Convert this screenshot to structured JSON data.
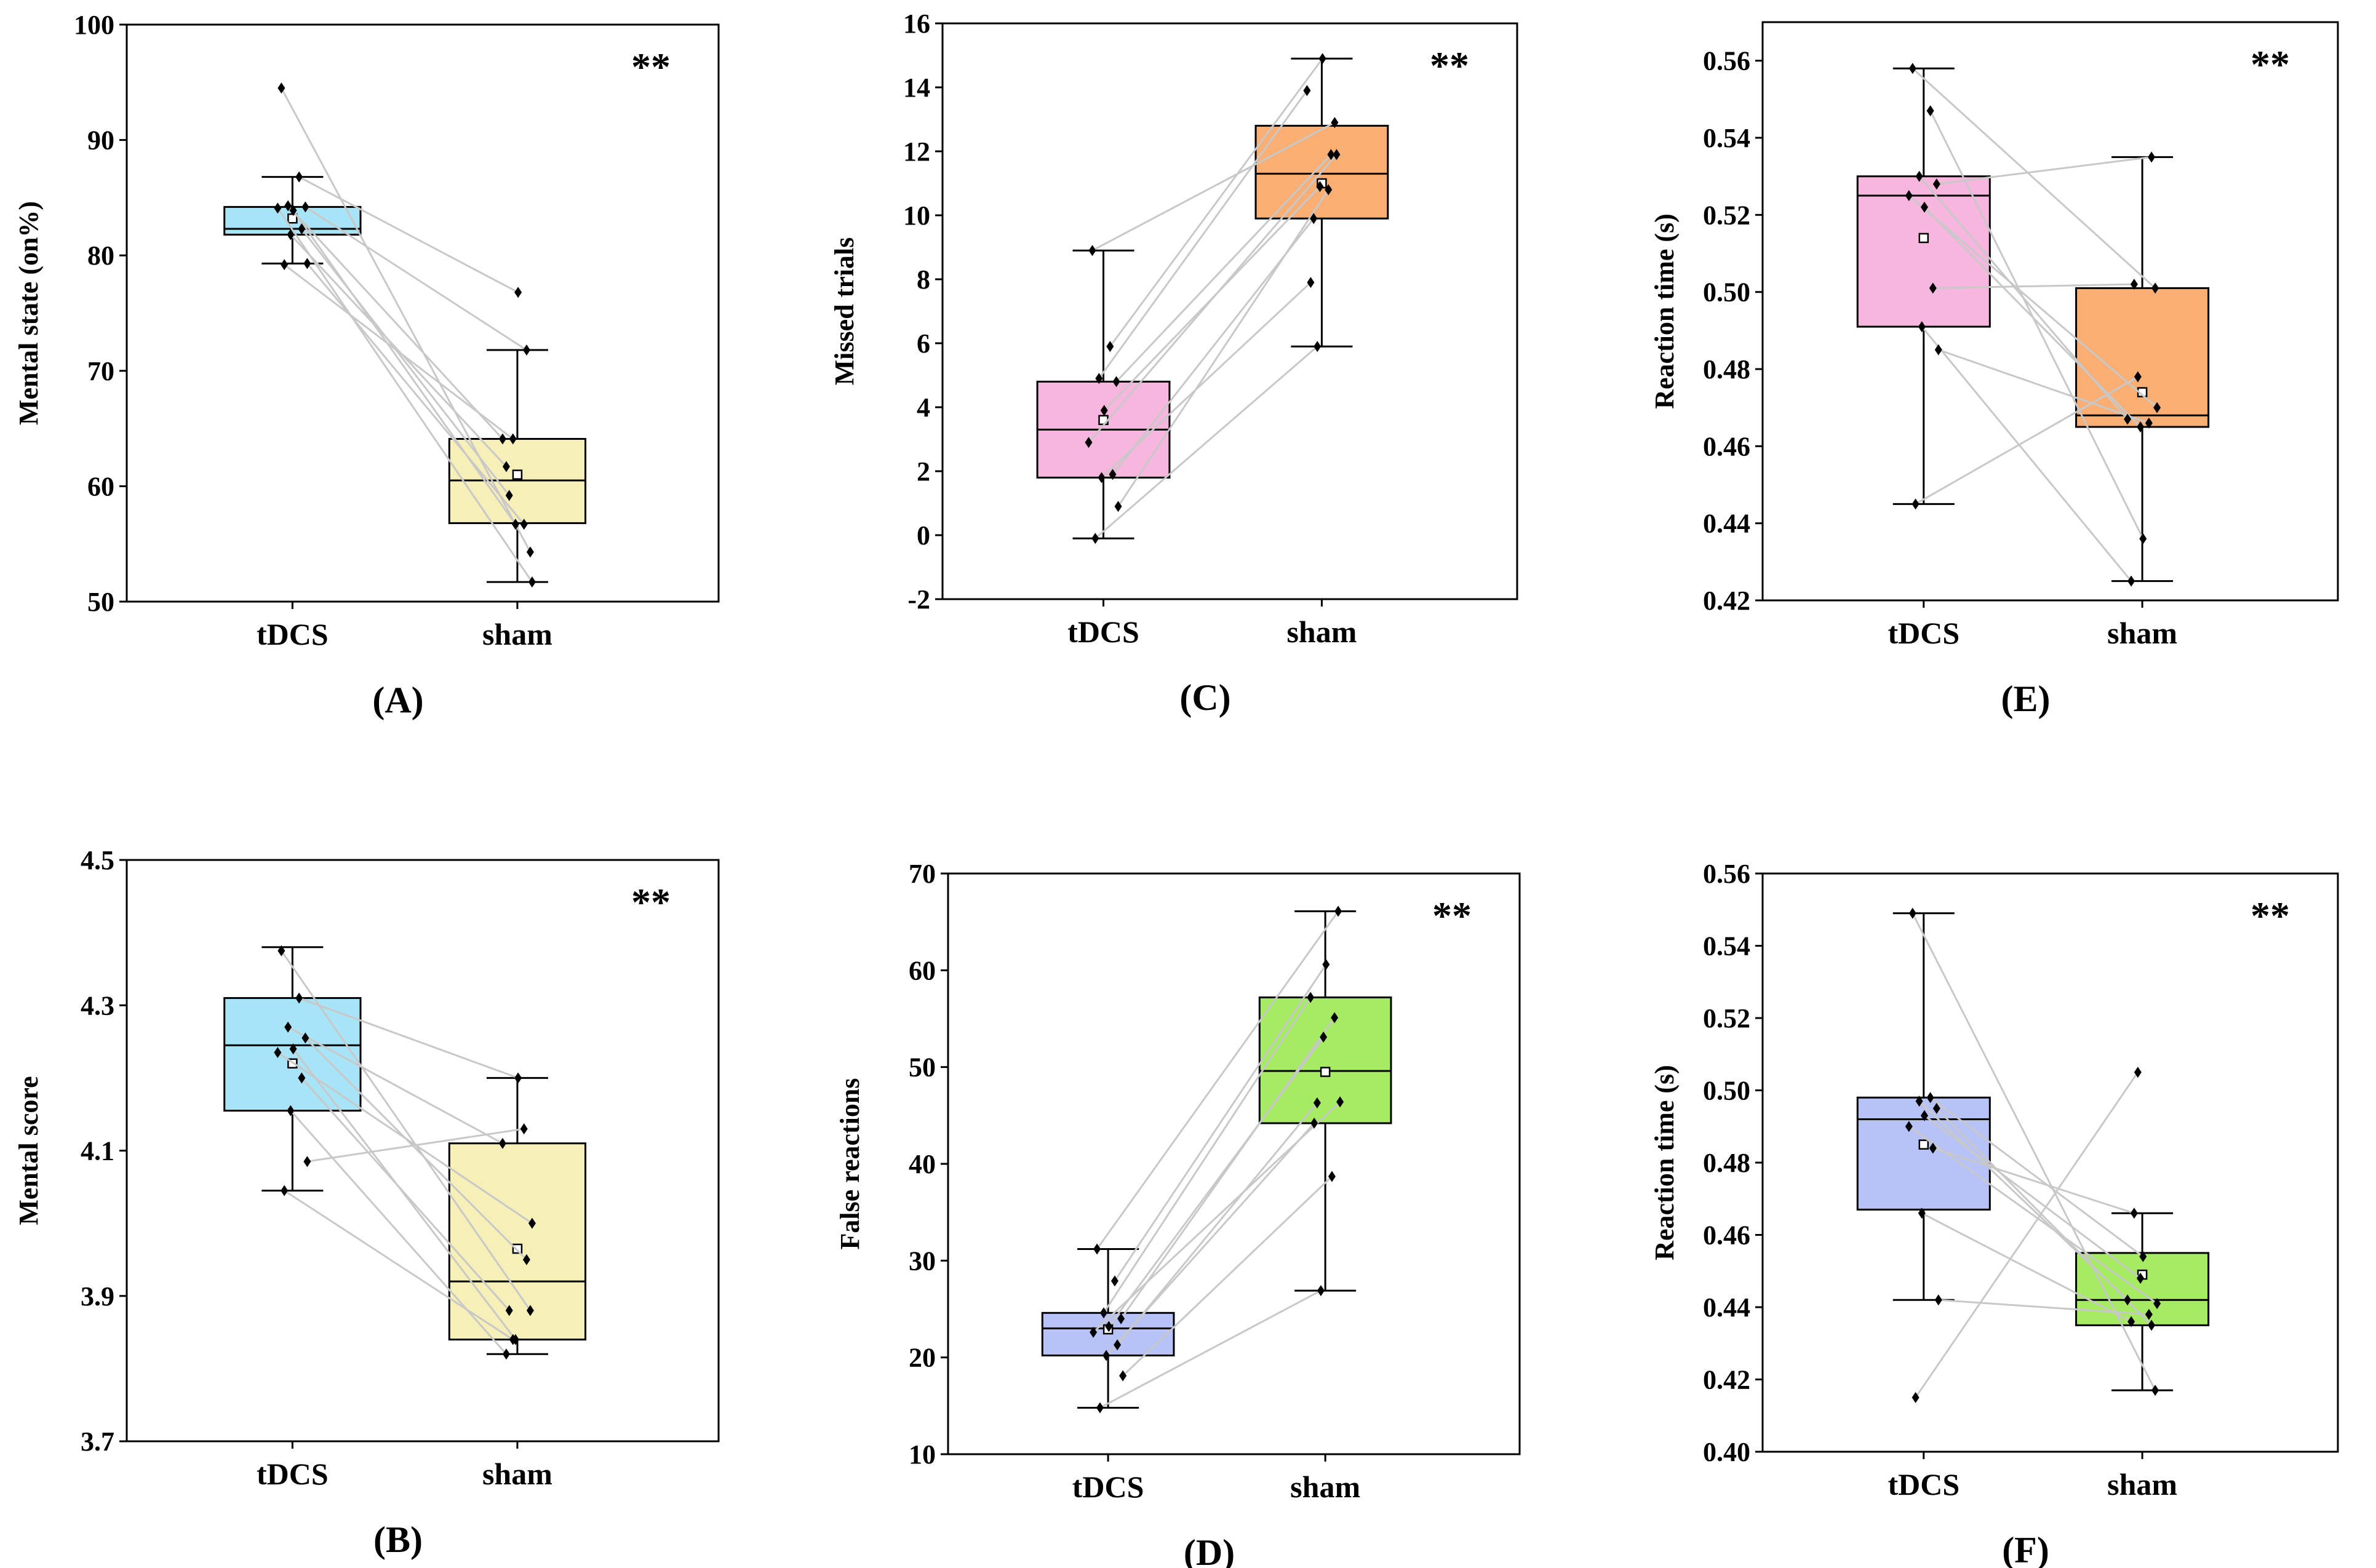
{
  "chart_data": [
    {
      "panel": "(A)",
      "type": "box",
      "ylabel": "Mental state (on%)",
      "ylim": [
        50,
        100
      ],
      "yticks": [
        50,
        60,
        70,
        80,
        90,
        100
      ],
      "categories": [
        "tDCS",
        "sham"
      ],
      "significance": "**",
      "colors": [
        "#a8e4f7",
        "#f6efb8"
      ],
      "boxes": [
        {
          "q1": 81.8,
          "median": 82.3,
          "q3": 84.2,
          "whisker_low": 79.3,
          "whisker_high": 86.8,
          "mean": 83.2
        },
        {
          "q1": 56.8,
          "median": 60.5,
          "q3": 64.1,
          "whisker_low": 51.7,
          "whisker_high": 71.8,
          "mean": 61.0
        }
      ],
      "pairs": [
        [
          94.5,
          54.3
        ],
        [
          86.8,
          76.8
        ],
        [
          84.3,
          64.1
        ],
        [
          84.2,
          71.8
        ],
        [
          83.9,
          56.7
        ],
        [
          84.1,
          51.7
        ],
        [
          82.3,
          59.2
        ],
        [
          81.8,
          61.7
        ],
        [
          79.3,
          56.7
        ],
        [
          79.2,
          64.1
        ]
      ]
    },
    {
      "panel": "(B)",
      "type": "box",
      "ylabel": "Mental score",
      "ylim": [
        3.7,
        4.5
      ],
      "yticks": [
        "3.7",
        "3.9",
        "4.1",
        "4.3",
        "4.5"
      ],
      "categories": [
        "tDCS",
        "sham"
      ],
      "significance": "**",
      "colors": [
        "#a8e4f7",
        "#f6efb8"
      ],
      "boxes": [
        {
          "q1": 4.155,
          "median": 4.245,
          "q3": 4.31,
          "whisker_low": 4.045,
          "whisker_high": 4.38,
          "mean": 4.22
        },
        {
          "q1": 3.84,
          "median": 3.92,
          "q3": 4.11,
          "whisker_low": 3.82,
          "whisker_high": 4.2,
          "mean": 3.965
        }
      ],
      "pairs": [
        [
          4.375,
          3.88
        ],
        [
          4.31,
          4.2
        ],
        [
          4.27,
          4.11
        ],
        [
          4.255,
          3.95
        ],
        [
          4.24,
          3.84
        ],
        [
          4.235,
          4.0
        ],
        [
          4.2,
          3.88
        ],
        [
          4.155,
          3.82
        ],
        [
          4.085,
          4.13
        ],
        [
          4.045,
          3.84
        ]
      ]
    },
    {
      "panel": "(C)",
      "type": "box",
      "ylabel": "Missed trials",
      "ylim": [
        -2,
        16
      ],
      "yticks": [
        -2,
        0,
        2,
        4,
        6,
        8,
        10,
        12,
        14,
        16
      ],
      "categories": [
        "tDCS",
        "sham"
      ],
      "significance": "**",
      "colors": [
        "#f7b6dd",
        "#f9ae74"
      ],
      "boxes": [
        {
          "q1": 1.8,
          "median": 3.3,
          "q3": 4.8,
          "whisker_low": -0.1,
          "whisker_high": 8.9,
          "mean": 3.6
        },
        {
          "q1": 9.9,
          "median": 11.3,
          "q3": 12.8,
          "whisker_low": 5.9,
          "whisker_high": 14.9,
          "mean": 11.0
        }
      ],
      "pairs": [
        [
          8.9,
          12.9
        ],
        [
          5.9,
          14.9
        ],
        [
          4.9,
          13.9
        ],
        [
          4.8,
          11.9
        ],
        [
          3.9,
          10.9
        ],
        [
          2.9,
          11.9
        ],
        [
          1.9,
          9.9
        ],
        [
          1.8,
          7.9
        ],
        [
          0.9,
          10.8
        ],
        [
          -0.1,
          5.9
        ]
      ]
    },
    {
      "panel": "(D)",
      "type": "box",
      "ylabel": "False reactions",
      "ylim": [
        10,
        70
      ],
      "yticks": [
        10,
        20,
        30,
        40,
        50,
        60,
        70
      ],
      "categories": [
        "tDCS",
        "sham"
      ],
      "significance": "**",
      "colors": [
        "#b7c2f7",
        "#a6ec63"
      ],
      "boxes": [
        {
          "q1": 20.2,
          "median": 23.0,
          "q3": 24.6,
          "whisker_low": 14.8,
          "whisker_high": 31.2,
          "mean": 22.9
        },
        {
          "q1": 44.2,
          "median": 49.6,
          "q3": 57.2,
          "whisker_low": 26.9,
          "whisker_high": 66.1,
          "mean": 49.5
        }
      ],
      "pairs": [
        [
          31.2,
          66.1
        ],
        [
          27.9,
          60.6
        ],
        [
          24.6,
          57.2
        ],
        [
          24.0,
          55.1
        ],
        [
          23.2,
          53.1
        ],
        [
          22.6,
          46.4
        ],
        [
          21.3,
          46.3
        ],
        [
          20.2,
          44.2
        ],
        [
          18.1,
          38.7
        ],
        [
          14.8,
          26.9
        ]
      ]
    },
    {
      "panel": "(E)",
      "type": "box",
      "ylabel": "Reaction time (s)",
      "ylim": [
        0.42,
        0.57
      ],
      "yticks": [
        "0.42",
        "0.44",
        "0.46",
        "0.48",
        "0.50",
        "0.52",
        "0.54",
        "0.56"
      ],
      "categories": [
        "tDCS",
        "sham"
      ],
      "significance": "**",
      "colors": [
        "#f7b6dd",
        "#f9ae74"
      ],
      "boxes": [
        {
          "q1": 0.491,
          "median": 0.525,
          "q3": 0.53,
          "whisker_low": 0.445,
          "whisker_high": 0.558,
          "mean": 0.514
        },
        {
          "q1": 0.465,
          "median": 0.468,
          "q3": 0.501,
          "whisker_low": 0.425,
          "whisker_high": 0.535,
          "mean": 0.474
        }
      ],
      "pairs": [
        [
          0.558,
          0.501
        ],
        [
          0.547,
          0.436
        ],
        [
          0.53,
          0.467
        ],
        [
          0.528,
          0.535
        ],
        [
          0.522,
          0.465
        ],
        [
          0.525,
          0.47
        ],
        [
          0.501,
          0.502
        ],
        [
          0.491,
          0.425
        ],
        [
          0.485,
          0.466
        ],
        [
          0.445,
          0.478
        ]
      ]
    },
    {
      "panel": "(F)",
      "type": "box",
      "ylabel": "Reaction time (s)",
      "ylim": [
        0.4,
        0.56
      ],
      "yticks": [
        "0.40",
        "0.42",
        "0.44",
        "0.46",
        "0.48",
        "0.50",
        "0.52",
        "0.54",
        "0.56"
      ],
      "categories": [
        "tDCS",
        "sham"
      ],
      "significance": "**",
      "colors": [
        "#b7c2f7",
        "#a6ec63"
      ],
      "boxes": [
        {
          "q1": 0.467,
          "median": 0.492,
          "q3": 0.498,
          "whisker_low": 0.442,
          "whisker_high": 0.549,
          "mean": 0.485
        },
        {
          "q1": 0.435,
          "median": 0.442,
          "q3": 0.455,
          "whisker_low": 0.417,
          "whisker_high": 0.466,
          "mean": 0.449
        }
      ],
      "pairs": [
        [
          0.549,
          0.417
        ],
        [
          0.498,
          0.454
        ],
        [
          0.497,
          0.442
        ],
        [
          0.495,
          0.435
        ],
        [
          0.493,
          0.448
        ],
        [
          0.49,
          0.441
        ],
        [
          0.484,
          0.466
        ],
        [
          0.466,
          0.436
        ],
        [
          0.442,
          0.438
        ],
        [
          0.415,
          0.505
        ]
      ]
    }
  ]
}
